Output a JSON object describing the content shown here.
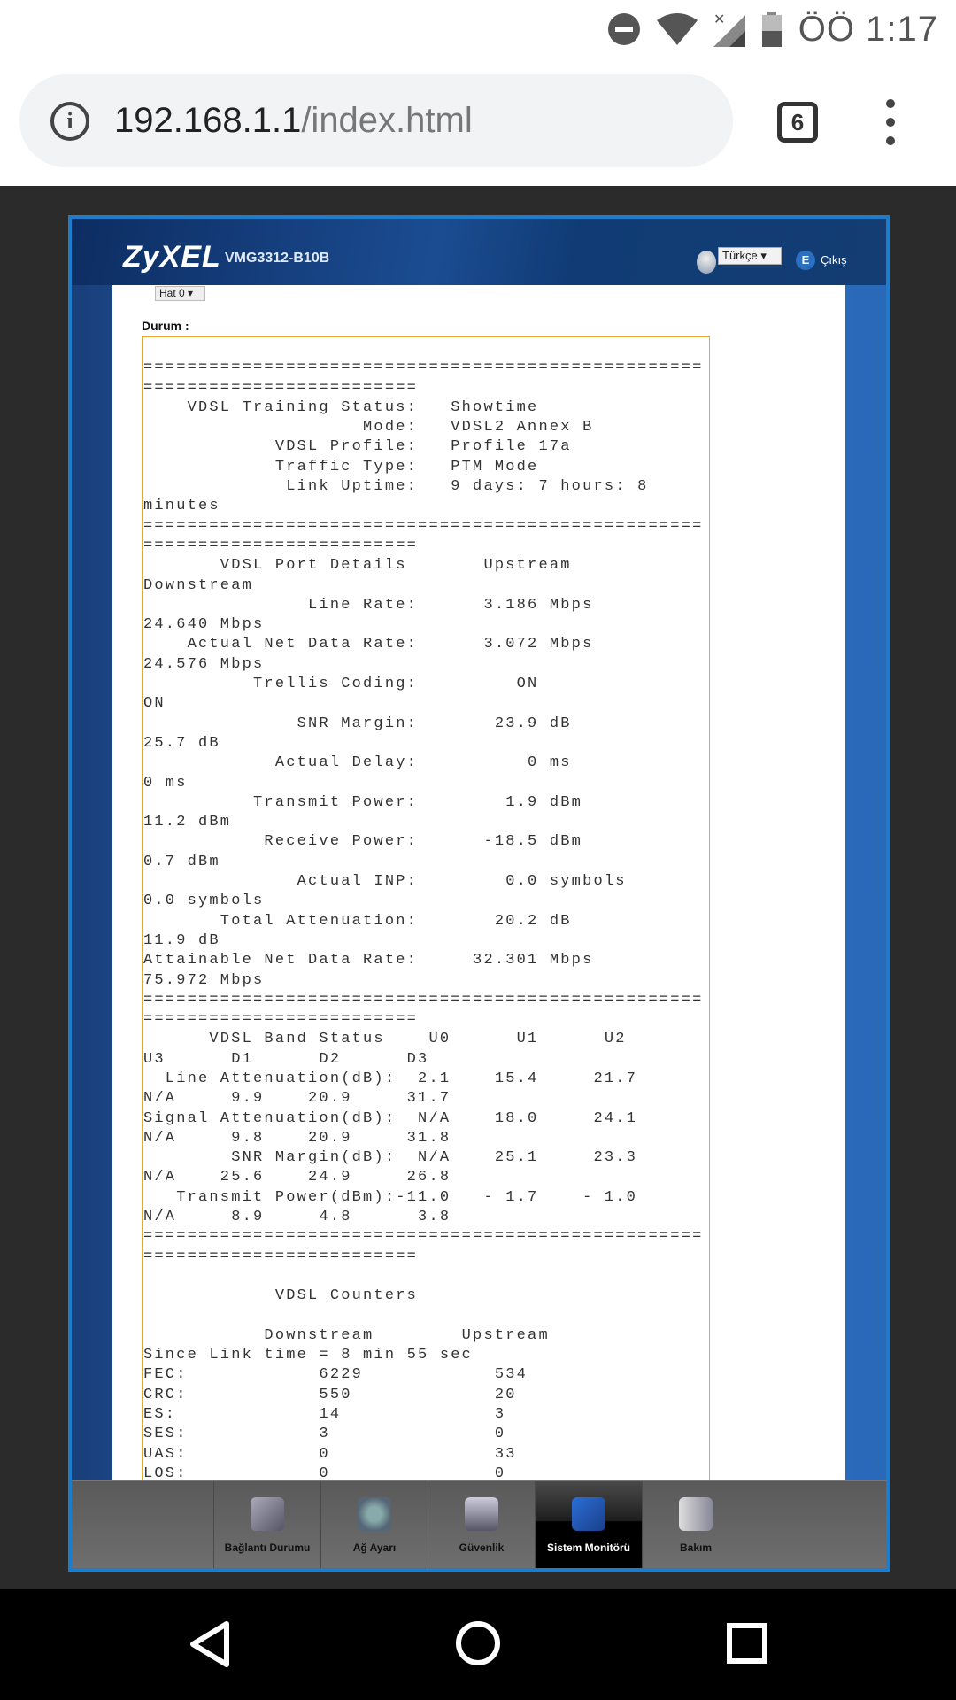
{
  "status_bar": {
    "time": "ÖÖ 1:17",
    "icons": [
      "do-not-disturb-icon",
      "wifi-icon",
      "no-signal-icon",
      "battery-icon"
    ]
  },
  "browser": {
    "url_host": "192.168.1.1",
    "url_path": "/index.html",
    "tab_count": "6",
    "icons": [
      "info-icon",
      "tabs-icon",
      "menu-icon"
    ]
  },
  "router": {
    "brand": "ZyXEL",
    "model": "VMG3312-B10B",
    "language": "Türkçe ▾",
    "logout": "Çıkış",
    "line_select": "Hat 0 ▾",
    "status_label": "Durum :",
    "status_lines": [
      "",
      "===================================================",
      "=========================",
      "    VDSL Training Status:   Showtime",
      "                    Mode:   VDSL2 Annex B",
      "            VDSL Profile:   Profile 17a",
      "            Traffic Type:   PTM Mode",
      "             Link Uptime:   9 days: 7 hours: 8",
      "minutes",
      "===================================================",
      "=========================",
      "       VDSL Port Details       Upstream",
      "Downstream",
      "               Line Rate:      3.186 Mbps",
      "24.640 Mbps",
      "    Actual Net Data Rate:      3.072 Mbps",
      "24.576 Mbps",
      "          Trellis Coding:         ON",
      "ON",
      "              SNR Margin:       23.9 dB",
      "25.7 dB",
      "            Actual Delay:          0 ms",
      "0 ms",
      "          Transmit Power:        1.9 dBm",
      "11.2 dBm",
      "           Receive Power:      -18.5 dBm",
      "0.7 dBm",
      "              Actual INP:        0.0 symbols",
      "0.0 symbols",
      "       Total Attenuation:       20.2 dB",
      "11.9 dB",
      "Attainable Net Data Rate:     32.301 Mbps",
      "75.972 Mbps",
      "===================================================",
      "=========================",
      "      VDSL Band Status    U0      U1      U2",
      "U3      D1      D2      D3",
      "  Line Attenuation(dB):  2.1    15.4     21.7",
      "N/A     9.9    20.9     31.7",
      "Signal Attenuation(dB):  N/A    18.0     24.1",
      "N/A     9.8    20.9     31.8",
      "        SNR Margin(dB):  N/A    25.1     23.3",
      "N/A    25.6    24.9     26.8",
      "   Transmit Power(dBm):-11.0   - 1.7    - 1.0",
      "N/A     8.9     4.8      3.8",
      "===================================================",
      "=========================",
      "",
      "            VDSL Counters",
      "",
      "           Downstream        Upstream",
      "Since Link time = 8 min 55 sec",
      "FEC:            6229            534",
      "CRC:            550             20",
      "ES:             14              3",
      "SES:            3               0",
      "UAS:            0               33",
      "LOS:            0               0"
    ],
    "nav": [
      {
        "label": "Bağlantı Durumu",
        "icon": "connection-status-icon",
        "active": false
      },
      {
        "label": "Ağ Ayarı",
        "icon": "gear-icon",
        "active": false
      },
      {
        "label": "Güvenlik",
        "icon": "shield-icon",
        "active": false
      },
      {
        "label": "Sistem Monitörü",
        "icon": "monitor-chart-icon",
        "active": true
      },
      {
        "label": "Bakım",
        "icon": "maintenance-icon",
        "active": false
      }
    ]
  },
  "android_nav": {
    "icons": [
      "back-icon",
      "home-icon",
      "recents-icon"
    ]
  },
  "colors": {
    "frame_border": "#1d7ccc",
    "status_box_border": "#e8a530",
    "active_nav": "#000000"
  }
}
